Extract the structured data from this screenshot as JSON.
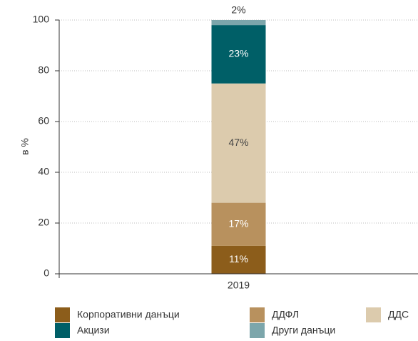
{
  "chart_data": {
    "type": "stacked_bar",
    "y_label": "в %",
    "categories": [
      "2019"
    ],
    "series": [
      {
        "name": "Корпоративни данъци",
        "color": "#8c5d1b",
        "label_color": "#ffffff",
        "values": [
          11
        ],
        "value_labels": [
          "11%"
        ]
      },
      {
        "name": "ДДФЛ",
        "color": "#b8915e",
        "label_color": "#ffffff",
        "values": [
          17
        ],
        "value_labels": [
          "17%"
        ]
      },
      {
        "name": "ДДС",
        "color": "#dccbad",
        "label_color": "#444444",
        "values": [
          47
        ],
        "value_labels": [
          "47%"
        ]
      },
      {
        "name": "Акцизи",
        "color": "#005f67",
        "label_color": "#ffffff",
        "values": [
          23
        ],
        "value_labels": [
          "23%"
        ]
      },
      {
        "name": "Други данъци",
        "color": "#7ca6ab",
        "label_color": "#444444",
        "values": [
          2
        ],
        "value_labels": [
          "2%"
        ]
      }
    ],
    "ylim": [
      0,
      100
    ],
    "yticks": [
      0,
      20,
      40,
      60,
      80,
      100
    ],
    "grid": true
  }
}
